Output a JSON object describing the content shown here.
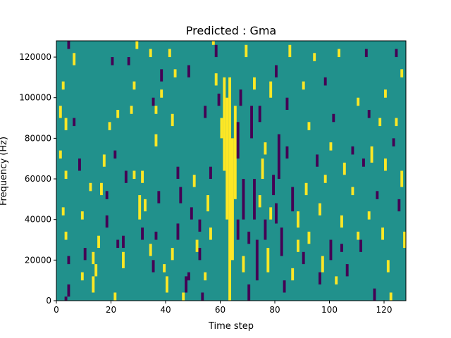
{
  "chart_data": {
    "type": "heatmap",
    "title": "Predicted : Gma",
    "xlabel": "Time step",
    "ylabel": "Frequency (Hz)",
    "xlim": [
      0,
      128
    ],
    "ylim": [
      0,
      128000
    ],
    "xticks": [
      0,
      20,
      40,
      60,
      80,
      100,
      120
    ],
    "yticks": [
      0,
      20000,
      40000,
      60000,
      80000,
      100000,
      120000
    ],
    "grid": false,
    "legend": "none",
    "colormap": "viridis",
    "colors": {
      "background_value": "#21918c",
      "low_value": "#440154",
      "high_value": "#fde725"
    },
    "n_time_steps": 128,
    "n_frequency_bins": 64,
    "frequency_bin_hz": 2000,
    "cells_note_fields": [
      "time_step",
      "frequency_start_hz",
      "frequency_end_hz",
      "value"
    ],
    "cells": [
      [
        4,
        124000,
        128000,
        "low"
      ],
      [
        6,
        116000,
        122000,
        "high"
      ],
      [
        2,
        104000,
        108000,
        "high"
      ],
      [
        1,
        90000,
        96000,
        "high"
      ],
      [
        3,
        84000,
        90000,
        "high"
      ],
      [
        1,
        70000,
        74000,
        "high"
      ],
      [
        3,
        60000,
        64000,
        "high"
      ],
      [
        2,
        42000,
        46000,
        "high"
      ],
      [
        3,
        30000,
        34000,
        "high"
      ],
      [
        4,
        18000,
        22000,
        "low"
      ],
      [
        4,
        2000,
        8000,
        "low"
      ],
      [
        3,
        0,
        2000,
        "low"
      ],
      [
        9,
        40000,
        44000,
        "high"
      ],
      [
        10,
        20000,
        26000,
        "low"
      ],
      [
        9,
        10000,
        14000,
        "high"
      ],
      [
        13,
        18000,
        24000,
        "high"
      ],
      [
        13,
        4000,
        12000,
        "high"
      ],
      [
        14,
        12000,
        18000,
        "high"
      ],
      [
        15,
        26000,
        32000,
        "high"
      ],
      [
        16,
        52000,
        58000,
        "high"
      ],
      [
        17,
        66000,
        72000,
        "high"
      ],
      [
        18,
        50000,
        54000,
        "low"
      ],
      [
        19,
        84000,
        88000,
        "high"
      ],
      [
        20,
        116000,
        120000,
        "low"
      ],
      [
        21,
        70000,
        74000,
        "low"
      ],
      [
        21,
        0,
        4000,
        "high"
      ],
      [
        22,
        26000,
        30000,
        "low"
      ],
      [
        24,
        16000,
        24000,
        "high"
      ],
      [
        24,
        26000,
        32000,
        "low"
      ],
      [
        25,
        58000,
        64000,
        "low"
      ],
      [
        26,
        116000,
        120000,
        "low"
      ],
      [
        27,
        92000,
        96000,
        "high"
      ],
      [
        28,
        104000,
        108000,
        "high"
      ],
      [
        29,
        124000,
        128000,
        "high"
      ],
      [
        30,
        40000,
        52000,
        "high"
      ],
      [
        31,
        58000,
        64000,
        "high"
      ],
      [
        31,
        30000,
        36000,
        "low"
      ],
      [
        32,
        44000,
        50000,
        "high"
      ],
      [
        34,
        22000,
        28000,
        "high"
      ],
      [
        35,
        96000,
        100000,
        "low"
      ],
      [
        35,
        14000,
        20000,
        "low"
      ],
      [
        36,
        92000,
        96000,
        "high"
      ],
      [
        36,
        30000,
        34000,
        "low"
      ],
      [
        37,
        48000,
        54000,
        "low"
      ],
      [
        38,
        108000,
        114000,
        "low"
      ],
      [
        38,
        100000,
        104000,
        "high"
      ],
      [
        39,
        14000,
        18000,
        "high"
      ],
      [
        40,
        4000,
        12000,
        "high"
      ],
      [
        41,
        120000,
        124000,
        "high"
      ],
      [
        42,
        20000,
        26000,
        "high"
      ],
      [
        43,
        110000,
        114000,
        "high"
      ],
      [
        44,
        30000,
        38000,
        "low"
      ],
      [
        45,
        48000,
        56000,
        "low"
      ],
      [
        46,
        0,
        4000,
        "high"
      ],
      [
        47,
        4000,
        12000,
        "low"
      ],
      [
        48,
        10000,
        14000,
        "low"
      ],
      [
        49,
        40000,
        46000,
        "low"
      ],
      [
        50,
        56000,
        62000,
        "high"
      ],
      [
        51,
        24000,
        30000,
        "high"
      ],
      [
        52,
        34000,
        40000,
        "low"
      ],
      [
        53,
        0,
        4000,
        "low"
      ],
      [
        54,
        10000,
        14000,
        "high"
      ],
      [
        55,
        44000,
        52000,
        "high"
      ],
      [
        56,
        60000,
        66000,
        "low"
      ],
      [
        57,
        126000,
        128000,
        "high"
      ],
      [
        58,
        120000,
        126000,
        "low"
      ],
      [
        59,
        96000,
        102000,
        "low"
      ],
      [
        60,
        80000,
        90000,
        "high"
      ],
      [
        61,
        64000,
        110000,
        "high"
      ],
      [
        62,
        40000,
        100000,
        "high"
      ],
      [
        63,
        0,
        110000,
        "high"
      ],
      [
        64,
        20000,
        80000,
        "high"
      ],
      [
        65,
        50000,
        96000,
        "high"
      ],
      [
        66,
        70000,
        88000,
        "low"
      ],
      [
        67,
        96000,
        104000,
        "low"
      ],
      [
        68,
        40000,
        60000,
        "low"
      ],
      [
        69,
        120000,
        126000,
        "high"
      ],
      [
        70,
        28000,
        34000,
        "low"
      ],
      [
        71,
        80000,
        96000,
        "low"
      ],
      [
        72,
        40000,
        60000,
        "low"
      ],
      [
        73,
        10000,
        30000,
        "low"
      ],
      [
        74,
        88000,
        96000,
        "low"
      ],
      [
        75,
        60000,
        70000,
        "high"
      ],
      [
        76,
        30000,
        40000,
        "low"
      ],
      [
        77,
        14000,
        26000,
        "high"
      ],
      [
        78,
        100000,
        108000,
        "high"
      ],
      [
        79,
        52000,
        62000,
        "low"
      ],
      [
        80,
        38000,
        48000,
        "low"
      ],
      [
        81,
        60000,
        82000,
        "low"
      ],
      [
        82,
        22000,
        36000,
        "low"
      ],
      [
        83,
        4000,
        10000,
        "low"
      ],
      [
        84,
        94000,
        100000,
        "low"
      ],
      [
        85,
        120000,
        126000,
        "high"
      ],
      [
        86,
        44000,
        56000,
        "low"
      ],
      [
        88,
        36000,
        44000,
        "high"
      ],
      [
        90,
        18000,
        24000,
        "low"
      ],
      [
        91,
        52000,
        58000,
        "high"
      ],
      [
        92,
        28000,
        34000,
        "high"
      ],
      [
        94,
        118000,
        122000,
        "high"
      ],
      [
        95,
        66000,
        72000,
        "low"
      ],
      [
        96,
        42000,
        48000,
        "high"
      ],
      [
        97,
        14000,
        22000,
        "high"
      ],
      [
        98,
        58000,
        62000,
        "high"
      ],
      [
        100,
        20000,
        30000,
        "low"
      ],
      [
        101,
        88000,
        92000,
        "low"
      ],
      [
        102,
        8000,
        12000,
        "high"
      ],
      [
        103,
        120000,
        124000,
        "high"
      ],
      [
        104,
        36000,
        42000,
        "high"
      ],
      [
        105,
        62000,
        68000,
        "high"
      ],
      [
        106,
        12000,
        18000,
        "low"
      ],
      [
        108,
        72000,
        76000,
        "low"
      ],
      [
        110,
        96000,
        100000,
        "high"
      ],
      [
        111,
        24000,
        30000,
        "low"
      ],
      [
        112,
        66000,
        70000,
        "low"
      ],
      [
        113,
        120000,
        124000,
        "low"
      ],
      [
        114,
        40000,
        44000,
        "high"
      ],
      [
        115,
        68000,
        76000,
        "high"
      ],
      [
        116,
        0,
        6000,
        "low"
      ],
      [
        117,
        50000,
        54000,
        "low"
      ],
      [
        118,
        86000,
        90000,
        "high"
      ],
      [
        119,
        30000,
        36000,
        "high"
      ],
      [
        120,
        64000,
        70000,
        "high"
      ],
      [
        121,
        14000,
        20000,
        "high"
      ],
      [
        122,
        0,
        4000,
        "high"
      ],
      [
        123,
        76000,
        80000,
        "low"
      ],
      [
        124,
        120000,
        124000,
        "low"
      ],
      [
        125,
        44000,
        50000,
        "low"
      ],
      [
        126,
        56000,
        64000,
        "high"
      ],
      [
        127,
        26000,
        34000,
        "high"
      ],
      [
        84,
        70000,
        76000,
        "low"
      ],
      [
        86,
        10000,
        16000,
        "high"
      ],
      [
        70,
        0,
        8000,
        "low"
      ],
      [
        66,
        30000,
        40000,
        "low"
      ],
      [
        68,
        14000,
        22000,
        "high"
      ],
      [
        74,
        46000,
        52000,
        "high"
      ],
      [
        76,
        72000,
        78000,
        "high"
      ],
      [
        78,
        40000,
        46000,
        "high"
      ],
      [
        52,
        20000,
        26000,
        "low"
      ],
      [
        56,
        30000,
        36000,
        "high"
      ],
      [
        44,
        60000,
        66000,
        "low"
      ],
      [
        42,
        86000,
        92000,
        "high"
      ],
      [
        48,
        110000,
        116000,
        "low"
      ],
      [
        36,
        76000,
        82000,
        "high"
      ],
      [
        28,
        60000,
        64000,
        "high"
      ],
      [
        22,
        90000,
        94000,
        "high"
      ],
      [
        18,
        36000,
        42000,
        "low"
      ],
      [
        12,
        54000,
        58000,
        "high"
      ],
      [
        8,
        64000,
        70000,
        "low"
      ],
      [
        6,
        86000,
        90000,
        "low"
      ],
      [
        34,
        120000,
        124000,
        "high"
      ],
      [
        54,
        90000,
        96000,
        "low"
      ],
      [
        58,
        106000,
        112000,
        "high"
      ],
      [
        72,
        104000,
        110000,
        "high"
      ],
      [
        80,
        110000,
        116000,
        "low"
      ],
      [
        90,
        104000,
        108000,
        "high"
      ],
      [
        100,
        74000,
        78000,
        "high"
      ],
      [
        108,
        52000,
        56000,
        "high"
      ],
      [
        114,
        90000,
        94000,
        "low"
      ],
      [
        120,
        100000,
        104000,
        "high"
      ],
      [
        126,
        110000,
        114000,
        "high"
      ],
      [
        124,
        86000,
        90000,
        "high"
      ],
      [
        110,
        30000,
        34000,
        "high"
      ],
      [
        104,
        24000,
        28000,
        "low"
      ],
      [
        96,
        8000,
        14000,
        "low"
      ],
      [
        88,
        24000,
        30000,
        "high"
      ],
      [
        92,
        84000,
        88000,
        "high"
      ],
      [
        98,
        106000,
        110000,
        "low"
      ]
    ]
  }
}
